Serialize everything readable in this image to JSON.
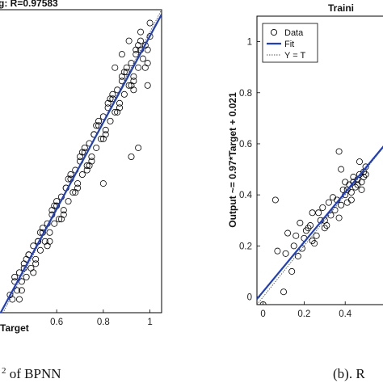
{
  "captions": {
    "left": "2 of BPNN",
    "right": "(b). R"
  },
  "colors": {
    "fit_line": "#1f3fbf",
    "marker_stroke": "#000000",
    "identity_line": "#555555"
  },
  "chart_data": [
    {
      "type": "scatter",
      "title": "g: R=0.97583",
      "xlabel": "Target",
      "ylabel": "",
      "xlim": [
        0.35,
        1.05
      ],
      "ylim": [
        0.37,
        1.05
      ],
      "xticks": [
        "0.6",
        "0.8",
        "1"
      ],
      "yticks": [],
      "grid": false,
      "fit": {
        "slope": 0.97,
        "intercept": 0.021
      },
      "series": [
        {
          "x": [
            0.4,
            0.41,
            0.42,
            0.43,
            0.44,
            0.45,
            0.46,
            0.47,
            0.48,
            0.49,
            0.5,
            0.51,
            0.52,
            0.53,
            0.54,
            0.55,
            0.56,
            0.57,
            0.58,
            0.59,
            0.6,
            0.61,
            0.62,
            0.63,
            0.64,
            0.65,
            0.66,
            0.67,
            0.68,
            0.69,
            0.7,
            0.71,
            0.72,
            0.73,
            0.74,
            0.75,
            0.76,
            0.77,
            0.78,
            0.79,
            0.8,
            0.81,
            0.82,
            0.83,
            0.84,
            0.85,
            0.86,
            0.87,
            0.88,
            0.89,
            0.9,
            0.91,
            0.92,
            0.93,
            0.94,
            0.95,
            0.96,
            0.97,
            0.98,
            0.99,
            1.0,
            0.42,
            0.45,
            0.48,
            0.51,
            0.54,
            0.57,
            0.6,
            0.63,
            0.66,
            0.69,
            0.72,
            0.75,
            0.78,
            0.81,
            0.84,
            0.87,
            0.9,
            0.93,
            0.96,
            0.99,
            0.44,
            0.47,
            0.5,
            0.53,
            0.56,
            0.59,
            0.62,
            0.65,
            0.68,
            0.71,
            0.74,
            0.77,
            0.8,
            0.83,
            0.86,
            0.89,
            0.92,
            0.95,
            0.98,
            0.46,
            0.52,
            0.58,
            0.64,
            0.7,
            0.76,
            0.82,
            0.88,
            0.94,
            1.0,
            0.99,
            0.96,
            0.8,
            0.73,
            0.95,
            0.92,
            0.93,
            0.85,
            0.88,
            0.91
          ],
          "y": [
            0.41,
            0.4,
            0.44,
            0.42,
            0.46,
            0.44,
            0.48,
            0.45,
            0.5,
            0.47,
            0.52,
            0.49,
            0.53,
            0.51,
            0.55,
            0.53,
            0.57,
            0.55,
            0.59,
            0.57,
            0.61,
            0.58,
            0.63,
            0.6,
            0.65,
            0.62,
            0.67,
            0.64,
            0.69,
            0.66,
            0.71,
            0.68,
            0.73,
            0.7,
            0.75,
            0.72,
            0.77,
            0.74,
            0.79,
            0.76,
            0.81,
            0.78,
            0.83,
            0.8,
            0.85,
            0.82,
            0.87,
            0.84,
            0.89,
            0.86,
            0.91,
            0.88,
            0.93,
            0.9,
            0.95,
            0.92,
            0.96,
            0.94,
            0.97,
            0.96,
            1.02,
            0.45,
            0.42,
            0.5,
            0.48,
            0.56,
            0.53,
            0.62,
            0.59,
            0.68,
            0.65,
            0.74,
            0.71,
            0.8,
            0.77,
            0.86,
            0.83,
            0.92,
            0.89,
            0.98,
            0.93,
            0.4,
            0.49,
            0.46,
            0.55,
            0.52,
            0.61,
            0.58,
            0.67,
            0.64,
            0.73,
            0.7,
            0.79,
            0.76,
            0.85,
            0.82,
            0.91,
            0.88,
            0.97,
            0.92,
            0.47,
            0.53,
            0.6,
            0.65,
            0.72,
            0.77,
            0.84,
            0.9,
            0.96,
            0.99,
            0.88,
            1.0,
            0.66,
            0.69,
            0.74,
            0.72,
            0.87,
            0.92,
            0.95,
            0.98
          ]
        }
      ]
    },
    {
      "type": "scatter",
      "title": "Traini",
      "xlabel": "",
      "ylabel": "Output ~= 0.97*Target + 0.021",
      "xlim": [
        -0.03,
        0.6
      ],
      "ylim": [
        -0.03,
        1.1
      ],
      "xticks": [
        "0",
        "0.2",
        "0.4"
      ],
      "yticks": [
        "0",
        "0.2",
        "0.4",
        "0.6",
        "0.8",
        "1"
      ],
      "grid": false,
      "legend": {
        "position": "top-left",
        "entries": [
          "Data",
          "Fit",
          "Y = T"
        ]
      },
      "fit": {
        "slope": 0.97,
        "intercept": 0.021
      },
      "series": [
        {
          "name": "Data",
          "x": [
            0.0,
            0.06,
            0.07,
            0.1,
            0.12,
            0.15,
            0.17,
            0.2,
            0.22,
            0.25,
            0.27,
            0.28,
            0.3,
            0.32,
            0.33,
            0.35,
            0.36,
            0.38,
            0.39,
            0.4,
            0.41,
            0.42,
            0.43,
            0.44,
            0.45,
            0.46,
            0.47,
            0.48,
            0.49,
            0.5,
            0.18,
            0.21,
            0.24,
            0.26,
            0.29,
            0.31,
            0.34,
            0.37,
            0.4,
            0.43,
            0.46,
            0.49,
            0.14,
            0.19,
            0.23,
            0.37,
            0.38,
            0.47,
            0.48,
            0.5,
            0.11,
            0.16,
            0.24,
            0.3,
            0.41,
            0.44
          ],
          "y": [
            -0.03,
            0.38,
            0.18,
            0.02,
            0.25,
            0.2,
            0.16,
            0.23,
            0.27,
            0.21,
            0.33,
            0.3,
            0.3,
            0.37,
            0.32,
            0.34,
            0.38,
            0.36,
            0.42,
            0.4,
            0.42,
            0.44,
            0.41,
            0.45,
            0.43,
            0.46,
            0.48,
            0.45,
            0.49,
            0.51,
            0.29,
            0.26,
            0.33,
            0.24,
            0.35,
            0.28,
            0.39,
            0.31,
            0.45,
            0.38,
            0.44,
            0.47,
            0.1,
            0.19,
            0.28,
            0.57,
            0.5,
            0.53,
            0.42,
            0.48,
            0.17,
            0.24,
            0.22,
            0.27,
            0.37,
            0.47
          ]
        },
        {
          "name": "Fit",
          "type": "line"
        },
        {
          "name": "Y = T",
          "type": "line"
        }
      ]
    }
  ]
}
